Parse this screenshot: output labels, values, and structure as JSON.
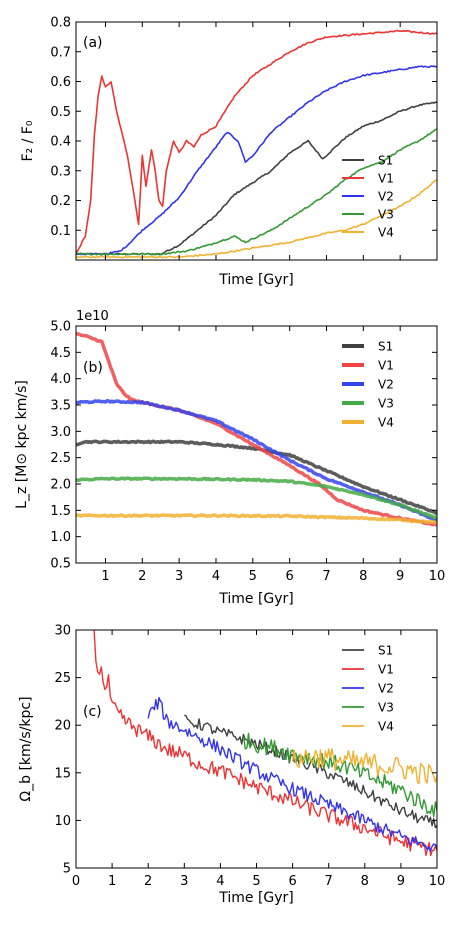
{
  "chart_data": [
    {
      "type": "line",
      "panel_label": "(a)",
      "xlabel": "Time [Gyr]",
      "ylabel": "F₂ / F₀",
      "xlim": [
        0.2,
        10
      ],
      "ylim": [
        0,
        0.8
      ],
      "yticks": [
        "0.1",
        "0.2",
        "0.3",
        "0.4",
        "0.5",
        "0.6",
        "0.7",
        "0.8"
      ],
      "show_xticklabels": false,
      "legend_position": "lower-right",
      "series": [
        {
          "name": "S1",
          "color": "#404040",
          "width": 1.6,
          "points": [
            [
              0.2,
              0.02
            ],
            [
              2.5,
              0.02
            ],
            [
              3.0,
              0.05
            ],
            [
              3.5,
              0.1
            ],
            [
              4.0,
              0.15
            ],
            [
              4.5,
              0.22
            ],
            [
              5.0,
              0.26
            ],
            [
              5.5,
              0.3
            ],
            [
              6.0,
              0.36
            ],
            [
              6.5,
              0.4
            ],
            [
              6.9,
              0.34
            ],
            [
              7.5,
              0.41
            ],
            [
              8.0,
              0.45
            ],
            [
              8.5,
              0.47
            ],
            [
              9.0,
              0.5
            ],
            [
              9.5,
              0.52
            ],
            [
              10.0,
              0.53
            ]
          ]
        },
        {
          "name": "V1",
          "color": "#ee3333",
          "width": 1.6,
          "points": [
            [
              0.2,
              0.02
            ],
            [
              0.45,
              0.08
            ],
            [
              0.6,
              0.2
            ],
            [
              0.7,
              0.42
            ],
            [
              0.8,
              0.55
            ],
            [
              0.9,
              0.62
            ],
            [
              1.0,
              0.58
            ],
            [
              1.15,
              0.6
            ],
            [
              1.3,
              0.5
            ],
            [
              1.6,
              0.35
            ],
            [
              1.8,
              0.2
            ],
            [
              1.9,
              0.12
            ],
            [
              2.0,
              0.35
            ],
            [
              2.1,
              0.25
            ],
            [
              2.25,
              0.37
            ],
            [
              2.35,
              0.3
            ],
            [
              2.45,
              0.2
            ],
            [
              2.55,
              0.18
            ],
            [
              2.65,
              0.3
            ],
            [
              2.85,
              0.4
            ],
            [
              3.0,
              0.36
            ],
            [
              3.2,
              0.4
            ],
            [
              3.4,
              0.38
            ],
            [
              3.6,
              0.42
            ],
            [
              4.0,
              0.45
            ],
            [
              4.5,
              0.55
            ],
            [
              5.0,
              0.62
            ],
            [
              5.5,
              0.66
            ],
            [
              6.0,
              0.7
            ],
            [
              6.5,
              0.73
            ],
            [
              7.0,
              0.75
            ],
            [
              8.0,
              0.76
            ],
            [
              9.0,
              0.77
            ],
            [
              10.0,
              0.76
            ]
          ]
        },
        {
          "name": "V2",
          "color": "#3333ee",
          "width": 1.6,
          "points": [
            [
              0.2,
              0.02
            ],
            [
              1.0,
              0.02
            ],
            [
              1.4,
              0.03
            ],
            [
              1.6,
              0.05
            ],
            [
              2.0,
              0.1
            ],
            [
              2.5,
              0.15
            ],
            [
              3.0,
              0.21
            ],
            [
              3.5,
              0.3
            ],
            [
              4.0,
              0.38
            ],
            [
              4.3,
              0.43
            ],
            [
              4.6,
              0.4
            ],
            [
              4.8,
              0.33
            ],
            [
              5.0,
              0.35
            ],
            [
              5.5,
              0.43
            ],
            [
              6.0,
              0.48
            ],
            [
              6.5,
              0.53
            ],
            [
              7.0,
              0.57
            ],
            [
              7.5,
              0.6
            ],
            [
              8.0,
              0.62
            ],
            [
              8.5,
              0.63
            ],
            [
              9.0,
              0.64
            ],
            [
              9.5,
              0.65
            ],
            [
              10.0,
              0.65
            ]
          ]
        },
        {
          "name": "V3",
          "color": "#339933",
          "width": 1.6,
          "points": [
            [
              0.2,
              0.02
            ],
            [
              2.5,
              0.02
            ],
            [
              3.2,
              0.03
            ],
            [
              3.8,
              0.05
            ],
            [
              4.5,
              0.08
            ],
            [
              4.8,
              0.06
            ],
            [
              5.5,
              0.1
            ],
            [
              6.0,
              0.14
            ],
            [
              6.5,
              0.18
            ],
            [
              7.0,
              0.22
            ],
            [
              7.5,
              0.27
            ],
            [
              8.0,
              0.31
            ],
            [
              8.5,
              0.33
            ],
            [
              9.0,
              0.37
            ],
            [
              9.5,
              0.4
            ],
            [
              10.0,
              0.44
            ]
          ]
        },
        {
          "name": "V4",
          "color": "#f0b030",
          "width": 1.6,
          "points": [
            [
              0.2,
              0.01
            ],
            [
              3.0,
              0.01
            ],
            [
              4.0,
              0.02
            ],
            [
              5.0,
              0.04
            ],
            [
              6.0,
              0.06
            ],
            [
              7.0,
              0.09
            ],
            [
              7.5,
              0.1
            ],
            [
              8.0,
              0.12
            ],
            [
              8.5,
              0.15
            ],
            [
              9.0,
              0.18
            ],
            [
              9.5,
              0.22
            ],
            [
              10.0,
              0.27
            ]
          ]
        }
      ]
    },
    {
      "type": "line",
      "panel_label": "(b)",
      "xlabel": "Time [Gyr]",
      "ylabel": "L_z [M⊙ kpc km/s]",
      "offset_text": "1e10",
      "xlim": [
        0.2,
        10
      ],
      "ylim": [
        0.5,
        5.0
      ],
      "xticks": [
        "1",
        "2",
        "3",
        "4",
        "5",
        "6",
        "7",
        "8",
        "9",
        "10"
      ],
      "yticks": [
        "0.5",
        "1.0",
        "1.5",
        "2.0",
        "2.5",
        "3.0",
        "3.5",
        "4.0",
        "4.5",
        "5.0"
      ],
      "show_xticklabels": true,
      "legend_position": "top-right",
      "series": [
        {
          "name": "S1",
          "color": "#404040",
          "width": 3.5,
          "points": [
            [
              0.2,
              2.75
            ],
            [
              0.4,
              2.8
            ],
            [
              1.0,
              2.8
            ],
            [
              2.0,
              2.8
            ],
            [
              3.0,
              2.8
            ],
            [
              4.0,
              2.75
            ],
            [
              5.0,
              2.68
            ],
            [
              6.0,
              2.55
            ],
            [
              7.0,
              2.25
            ],
            [
              8.0,
              1.95
            ],
            [
              9.0,
              1.7
            ],
            [
              10.0,
              1.45
            ]
          ]
        },
        {
          "name": "V1",
          "color": "#ee4444",
          "width": 3.5,
          "points": [
            [
              0.2,
              4.85
            ],
            [
              0.5,
              4.8
            ],
            [
              0.9,
              4.7
            ],
            [
              1.1,
              4.3
            ],
            [
              1.3,
              3.9
            ],
            [
              1.5,
              3.72
            ],
            [
              1.7,
              3.6
            ],
            [
              2.0,
              3.55
            ],
            [
              3.0,
              3.4
            ],
            [
              4.0,
              3.15
            ],
            [
              5.0,
              2.75
            ],
            [
              6.0,
              2.35
            ],
            [
              6.8,
              2.0
            ],
            [
              7.3,
              1.7
            ],
            [
              8.0,
              1.5
            ],
            [
              9.0,
              1.35
            ],
            [
              10.0,
              1.22
            ]
          ]
        },
        {
          "name": "V2",
          "color": "#3344ee",
          "width": 3.5,
          "points": [
            [
              0.2,
              3.55
            ],
            [
              1.0,
              3.57
            ],
            [
              2.0,
              3.55
            ],
            [
              3.0,
              3.4
            ],
            [
              4.0,
              3.2
            ],
            [
              5.0,
              2.85
            ],
            [
              6.0,
              2.45
            ],
            [
              7.0,
              2.1
            ],
            [
              8.0,
              1.85
            ],
            [
              9.0,
              1.6
            ],
            [
              10.0,
              1.3
            ]
          ]
        },
        {
          "name": "V3",
          "color": "#44aa44",
          "width": 3.5,
          "points": [
            [
              0.2,
              2.08
            ],
            [
              1.0,
              2.1
            ],
            [
              3.0,
              2.1
            ],
            [
              5.0,
              2.08
            ],
            [
              6.0,
              2.05
            ],
            [
              7.0,
              1.95
            ],
            [
              8.0,
              1.8
            ],
            [
              9.0,
              1.6
            ],
            [
              10.0,
              1.35
            ]
          ]
        },
        {
          "name": "V4",
          "color": "#f0b030",
          "width": 3.5,
          "points": [
            [
              0.2,
              1.4
            ],
            [
              2.0,
              1.4
            ],
            [
              4.0,
              1.4
            ],
            [
              6.0,
              1.39
            ],
            [
              8.0,
              1.35
            ],
            [
              9.0,
              1.32
            ],
            [
              10.0,
              1.27
            ]
          ]
        }
      ]
    },
    {
      "type": "line",
      "panel_label": "(c)",
      "xlabel": "Time [Gyr]",
      "ylabel": "Ω_b [km/s/kpc]",
      "xlim": [
        0,
        10
      ],
      "ylim": [
        5,
        30
      ],
      "xticks": [
        "0",
        "1",
        "2",
        "3",
        "4",
        "5",
        "6",
        "7",
        "8",
        "9",
        "10"
      ],
      "yticks": [
        "5",
        "10",
        "15",
        "20",
        "25",
        "30"
      ],
      "show_xticklabels": true,
      "legend_position": "top-right",
      "series": [
        {
          "name": "S1",
          "color": "#404040",
          "width": 1.4,
          "jitter": 0.6,
          "points": [
            [
              3.0,
              20.5
            ],
            [
              3.5,
              20.0
            ],
            [
              4.0,
              19.2
            ],
            [
              4.5,
              18.7
            ],
            [
              5.0,
              18.0
            ],
            [
              5.5,
              17.3
            ],
            [
              6.0,
              16.5
            ],
            [
              6.5,
              15.7
            ],
            [
              7.0,
              14.9
            ],
            [
              7.5,
              14.0
            ],
            [
              8.0,
              13.0
            ],
            [
              8.5,
              12.0
            ],
            [
              9.0,
              11.0
            ],
            [
              9.5,
              10.2
            ],
            [
              10.0,
              9.5
            ]
          ]
        },
        {
          "name": "V1",
          "color": "#ee3333",
          "width": 1.4,
          "jitter": 0.8,
          "points": [
            [
              0.5,
              30.0
            ],
            [
              0.6,
              25.0
            ],
            [
              0.7,
              26.5
            ],
            [
              0.8,
              23.5
            ],
            [
              0.9,
              24.5
            ],
            [
              1.0,
              22.0
            ],
            [
              1.2,
              21.0
            ],
            [
              1.5,
              20.0
            ],
            [
              2.0,
              18.8
            ],
            [
              2.5,
              17.5
            ],
            [
              3.0,
              16.8
            ],
            [
              3.5,
              15.8
            ],
            [
              4.0,
              15.2
            ],
            [
              5.0,
              13.5
            ],
            [
              6.0,
              12.0
            ],
            [
              7.0,
              10.5
            ],
            [
              8.0,
              9.2
            ],
            [
              9.0,
              7.8
            ],
            [
              10.0,
              6.8
            ]
          ]
        },
        {
          "name": "V2",
          "color": "#3333ee",
          "width": 1.4,
          "jitter": 0.7,
          "points": [
            [
              2.0,
              21.0
            ],
            [
              2.3,
              22.5
            ],
            [
              2.5,
              20.5
            ],
            [
              3.0,
              19.5
            ],
            [
              3.5,
              18.5
            ],
            [
              4.0,
              17.5
            ],
            [
              4.5,
              16.3
            ],
            [
              5.0,
              15.2
            ],
            [
              5.5,
              14.2
            ],
            [
              6.0,
              13.3
            ],
            [
              6.5,
              12.5
            ],
            [
              7.0,
              11.6
            ],
            [
              7.5,
              10.8
            ],
            [
              8.0,
              10.0
            ],
            [
              8.5,
              9.1
            ],
            [
              9.0,
              8.3
            ],
            [
              9.5,
              7.6
            ],
            [
              10.0,
              7.0
            ]
          ]
        },
        {
          "name": "V3",
          "color": "#339933",
          "width": 1.4,
          "jitter": 0.9,
          "points": [
            [
              4.6,
              18.5
            ],
            [
              5.0,
              18.0
            ],
            [
              5.5,
              17.6
            ],
            [
              6.0,
              17.0
            ],
            [
              6.5,
              16.6
            ],
            [
              7.0,
              16.2
            ],
            [
              7.5,
              15.6
            ],
            [
              8.0,
              14.8
            ],
            [
              8.5,
              14.0
            ],
            [
              9.0,
              13.2
            ],
            [
              9.5,
              12.0
            ],
            [
              10.0,
              11.0
            ]
          ]
        },
        {
          "name": "V4",
          "color": "#f0b030",
          "width": 1.4,
          "jitter": 1.2,
          "points": [
            [
              6.0,
              16.3
            ],
            [
              6.5,
              16.8
            ],
            [
              7.0,
              16.5
            ],
            [
              7.5,
              16.2
            ],
            [
              8.0,
              16.0
            ],
            [
              8.5,
              15.8
            ],
            [
              9.0,
              15.5
            ],
            [
              9.5,
              15.0
            ],
            [
              10.0,
              14.6
            ]
          ]
        }
      ]
    }
  ]
}
